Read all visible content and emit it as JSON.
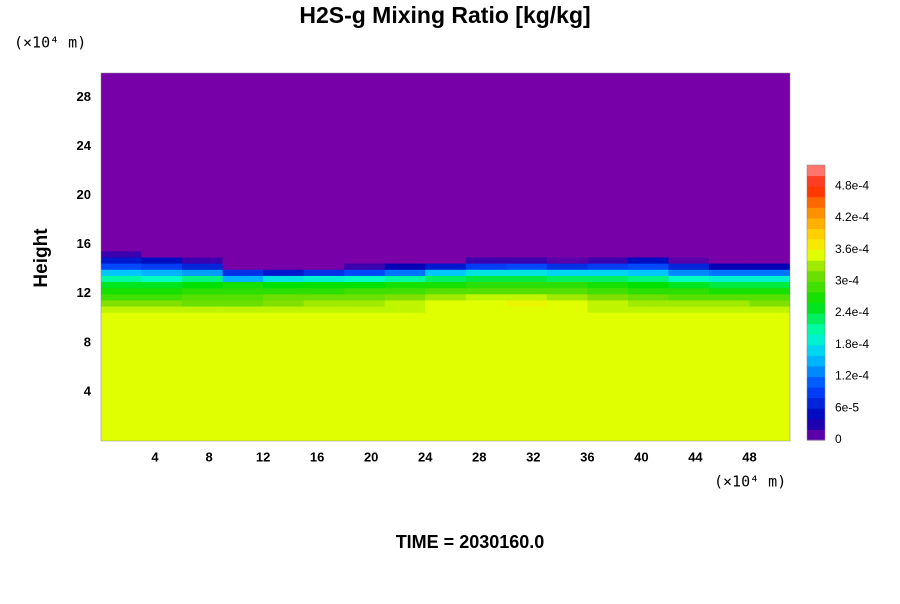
{
  "chart_data": {
    "type": "heatmap",
    "title": "H2S-g Mixing Ratio [kg/kg]",
    "ylabel": "Height",
    "x_unit": "(×10⁴ m)",
    "y_unit": "(×10⁴ m)",
    "time_label": "TIME = 2030160.0",
    "xlim": [
      0,
      51
    ],
    "ylim": [
      0,
      30
    ],
    "xticks": [
      4,
      8,
      12,
      16,
      20,
      24,
      28,
      32,
      36,
      40,
      44,
      48
    ],
    "yticks": [
      4,
      8,
      12,
      16,
      20,
      24,
      28
    ],
    "xbins": [
      0,
      3,
      6,
      9,
      12,
      15,
      18,
      21,
      24,
      27,
      30,
      33,
      36,
      39,
      42,
      45,
      48,
      51
    ],
    "ybins": [
      0,
      10,
      10.5,
      11,
      11.5,
      12,
      12.5,
      13,
      13.5,
      14,
      14.5,
      15,
      15.5,
      30
    ],
    "z": [
      [
        0.00035,
        0.00035,
        0.00035,
        0.00035,
        0.00035,
        0.00035,
        0.00035,
        0.00035,
        0.00035,
        0.00035,
        0.00035,
        0.00035,
        0.00035,
        0.00035,
        0.00035,
        0.00035,
        0.00035
      ],
      [
        0.00035,
        0.00035,
        0.00035,
        0.00035,
        0.00035,
        0.00035,
        0.00035,
        0.00035,
        0.00035,
        0.00035,
        0.00035,
        0.00035,
        0.00035,
        0.00035,
        0.00035,
        0.00035,
        0.00035
      ],
      [
        0.00034,
        0.00034,
        0.00034,
        0.00034,
        0.00034,
        0.00034,
        0.00034,
        0.00034,
        0.00035,
        0.00035,
        0.00035,
        0.00035,
        0.00034,
        0.00034,
        0.00034,
        0.00034,
        0.00034
      ],
      [
        0.00032,
        0.00032,
        0.00031,
        0.00031,
        0.00032,
        0.00033,
        0.00033,
        0.00034,
        0.00035,
        0.00035,
        0.00036,
        0.00035,
        0.00034,
        0.00033,
        0.00033,
        0.00033,
        0.00032
      ],
      [
        0.00029,
        0.00029,
        0.0003,
        0.0003,
        0.00031,
        0.00031,
        0.00031,
        0.00032,
        0.00033,
        0.00034,
        0.00034,
        0.00033,
        0.00032,
        0.00031,
        0.0003,
        0.0003,
        0.0003
      ],
      [
        0.00027,
        0.00027,
        0.00028,
        0.00028,
        0.00028,
        0.00028,
        0.00029,
        0.00029,
        0.0003,
        0.0003,
        0.0003,
        0.0003,
        0.00029,
        0.00028,
        0.00028,
        0.00027,
        0.00027
      ],
      [
        0.00025,
        0.00025,
        0.00026,
        0.00027,
        0.00026,
        0.00026,
        0.00026,
        0.00027,
        0.00027,
        0.00028,
        0.00028,
        0.00028,
        0.00027,
        0.00026,
        0.00025,
        0.00024,
        0.00024
      ],
      [
        0.00021,
        0.0002,
        0.00022,
        0.00015,
        0.00018,
        0.00019,
        0.0002,
        0.00021,
        0.00023,
        0.00024,
        0.00024,
        0.00023,
        0.00023,
        0.00022,
        0.0002,
        0.00019,
        0.00019
      ],
      [
        0.00016,
        0.00015,
        0.00014,
        8e-05,
        6e-05,
        8e-05,
        0.0001,
        0.00012,
        0.00016,
        0.00018,
        0.00018,
        0.00017,
        0.00017,
        0.00016,
        0.00013,
        0.00012,
        0.00012
      ],
      [
        0.0001,
        9e-05,
        7e-05,
        0,
        0,
        0,
        2e-05,
        4e-05,
        6e-05,
        9e-05,
        0.0001,
        8e-05,
        9e-05,
        0.0001,
        7e-05,
        4e-05,
        4e-05
      ],
      [
        6e-05,
        5e-05,
        2e-05,
        0,
        0,
        0,
        0,
        0,
        0,
        2e-05,
        2e-05,
        1e-05,
        2e-05,
        5e-05,
        1e-05,
        0,
        0
      ],
      [
        2e-05,
        0,
        0,
        0,
        0,
        0,
        0,
        0,
        0,
        0,
        0,
        0,
        0,
        0,
        0,
        0,
        0
      ],
      [
        0,
        0,
        0,
        0,
        0,
        0,
        0,
        0,
        0,
        0,
        0,
        0,
        0,
        0,
        0,
        0,
        0
      ]
    ],
    "clim": [
      0,
      0.00052
    ],
    "cticks": [
      0,
      {
        "value": 6e-05,
        "label": "6e-5"
      },
      {
        "value": 0.00012,
        "label": "1.2e-4"
      },
      {
        "value": 0.00018,
        "label": "1.8e-4"
      },
      {
        "value": 0.00024,
        "label": "2.4e-4"
      },
      {
        "value": 0.0003,
        "label": "3e-4"
      },
      {
        "value": 0.00036,
        "label": "3.6e-4"
      },
      {
        "value": 0.00042,
        "label": "4.2e-4"
      },
      {
        "value": 0.00048,
        "label": "4.8e-4"
      }
    ],
    "colormap": [
      {
        "value": 0,
        "color": "#7800a8"
      },
      {
        "value": 4e-05,
        "color": "#0000b4"
      },
      {
        "value": 0.0001,
        "color": "#0048ff"
      },
      {
        "value": 0.00016,
        "color": "#00c8ff"
      },
      {
        "value": 0.0002,
        "color": "#00ffc0"
      },
      {
        "value": 0.00026,
        "color": "#00e000"
      },
      {
        "value": 0.00032,
        "color": "#80e000"
      },
      {
        "value": 0.00035,
        "color": "#e0ff00"
      },
      {
        "value": 0.00038,
        "color": "#ffe000"
      },
      {
        "value": 0.00044,
        "color": "#ff8000"
      },
      {
        "value": 0.00048,
        "color": "#ff2000"
      },
      {
        "value": 0.00052,
        "color": "#ff9090"
      }
    ]
  }
}
